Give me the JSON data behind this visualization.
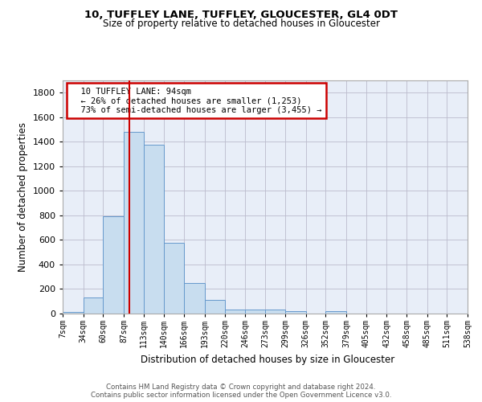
{
  "title1": "10, TUFFLEY LANE, TUFFLEY, GLOUCESTER, GL4 0DT",
  "title2": "Size of property relative to detached houses in Gloucester",
  "xlabel": "Distribution of detached houses by size in Gloucester",
  "ylabel": "Number of detached properties",
  "annotation_line1": "10 TUFFLEY LANE: 94sqm",
  "annotation_line2": "← 26% of detached houses are smaller (1,253)",
  "annotation_line3": "73% of semi-detached houses are larger (3,455) →",
  "property_sqm": 94,
  "footer1": "Contains HM Land Registry data © Crown copyright and database right 2024.",
  "footer2": "Contains public sector information licensed under the Open Government Licence v3.0.",
  "bar_color": "#c8ddef",
  "bar_edge_color": "#6699cc",
  "bg_color": "#e8eef8",
  "grid_color": "#bbbbcc",
  "red_line_color": "#cc0000",
  "annotation_box_color": "#cc0000",
  "bin_edges": [
    7,
    34,
    60,
    87,
    113,
    140,
    166,
    193,
    220,
    246,
    273,
    299,
    326,
    352,
    379,
    405,
    432,
    458,
    485,
    511,
    538
  ],
  "bin_values": [
    15,
    130,
    795,
    1480,
    1375,
    575,
    250,
    110,
    35,
    30,
    30,
    20,
    0,
    20,
    0,
    0,
    0,
    0,
    0,
    0
  ],
  "ylim": [
    0,
    1900
  ],
  "yticks": [
    0,
    200,
    400,
    600,
    800,
    1000,
    1200,
    1400,
    1600,
    1800
  ]
}
